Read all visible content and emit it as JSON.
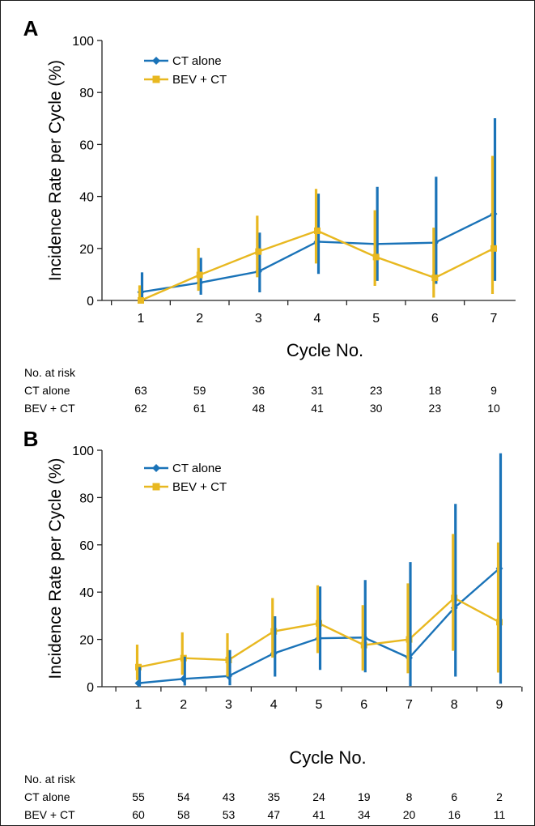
{
  "chart_data": [
    {
      "panel_label": "A",
      "type": "line",
      "error_bars": true,
      "xlabel": "Cycle No.",
      "ylabel": "Incidence Rate per Cycle (%)",
      "ylim": [
        0,
        100
      ],
      "yticks": [
        0,
        20,
        40,
        60,
        80,
        100
      ],
      "xlim": [
        0.7,
        7.3
      ],
      "x": [
        1,
        2,
        3,
        4,
        5,
        6,
        7
      ],
      "grid": false,
      "legend_position": "top-left",
      "series": [
        {
          "name": "CT alone",
          "color": "#1a73b8",
          "marker": "diamond",
          "values": [
            3.2,
            6.8,
            11.1,
            22.6,
            21.7,
            22.2,
            33.3
          ],
          "ci_low": [
            0.4,
            2.2,
            3.1,
            10.2,
            7.5,
            6.4,
            7.5
          ],
          "ci_high": [
            10.8,
            16.4,
            26.1,
            41.1,
            43.7,
            47.6,
            70.1
          ]
        },
        {
          "name": "BEV + CT",
          "color": "#e8b820",
          "marker": "square",
          "values": [
            0.0,
            9.8,
            18.8,
            26.8,
            16.7,
            8.7,
            20.0
          ],
          "ci_low": [
            0.0,
            3.7,
            8.9,
            14.2,
            5.6,
            1.1,
            2.5
          ],
          "ci_high": [
            5.8,
            20.2,
            32.6,
            42.9,
            34.7,
            28.0,
            55.6
          ]
        }
      ],
      "risk_table": {
        "title": "No. at risk",
        "rows": [
          {
            "label": "CT alone",
            "values": [
              "63",
              "59",
              "36",
              "31",
              "23",
              "18",
              "9"
            ]
          },
          {
            "label": "BEV + CT",
            "values": [
              "62",
              "61",
              "48",
              "41",
              "30",
              "23",
              "10"
            ]
          }
        ]
      }
    },
    {
      "panel_label": "B",
      "type": "line",
      "error_bars": true,
      "xlabel": "Cycle No.",
      "ylabel": "Incidence Rate per Cycle (%)",
      "ylim": [
        0,
        100
      ],
      "yticks": [
        0,
        20,
        40,
        60,
        80,
        100
      ],
      "xlim": [
        0.7,
        9.3
      ],
      "x": [
        1,
        2,
        3,
        4,
        5,
        6,
        7,
        8,
        9
      ],
      "grid": false,
      "legend_position": "top-left",
      "series": [
        {
          "name": "CT alone",
          "color": "#1a73b8",
          "marker": "diamond",
          "values": [
            1.5,
            3.3,
            4.5,
            14.1,
            20.5,
            20.8,
            12.2,
            33.3,
            50.0
          ],
          "ci_low": [
            0.0,
            0.5,
            0.6,
            4.3,
            7.1,
            6.1,
            0.3,
            4.3,
            1.3
          ],
          "ci_high": [
            8.3,
            12.7,
            15.5,
            29.8,
            42.4,
            45.1,
            52.7,
            77.3,
            98.7
          ]
        },
        {
          "name": "BEV + CT",
          "color": "#e8b820",
          "marker": "square",
          "values": [
            8.3,
            12.1,
            11.3,
            23.4,
            26.8,
            17.6,
            20.0,
            37.5,
            27.3
          ],
          "ci_low": [
            2.8,
            5.0,
            4.3,
            12.3,
            14.2,
            6.8,
            5.7,
            15.2,
            6.0
          ],
          "ci_high": [
            17.8,
            23.0,
            22.6,
            37.5,
            42.9,
            34.5,
            43.7,
            64.6,
            61.0
          ]
        }
      ],
      "risk_table": {
        "title": "No. at risk",
        "rows": [
          {
            "label": "CT alone",
            "values": [
              "55",
              "54",
              "43",
              "35",
              "24",
              "19",
              "8",
              "6",
              "2"
            ]
          },
          {
            "label": "BEV + CT",
            "values": [
              "60",
              "58",
              "53",
              "47",
              "41",
              "34",
              "20",
              "16",
              "11"
            ]
          }
        ]
      }
    }
  ]
}
